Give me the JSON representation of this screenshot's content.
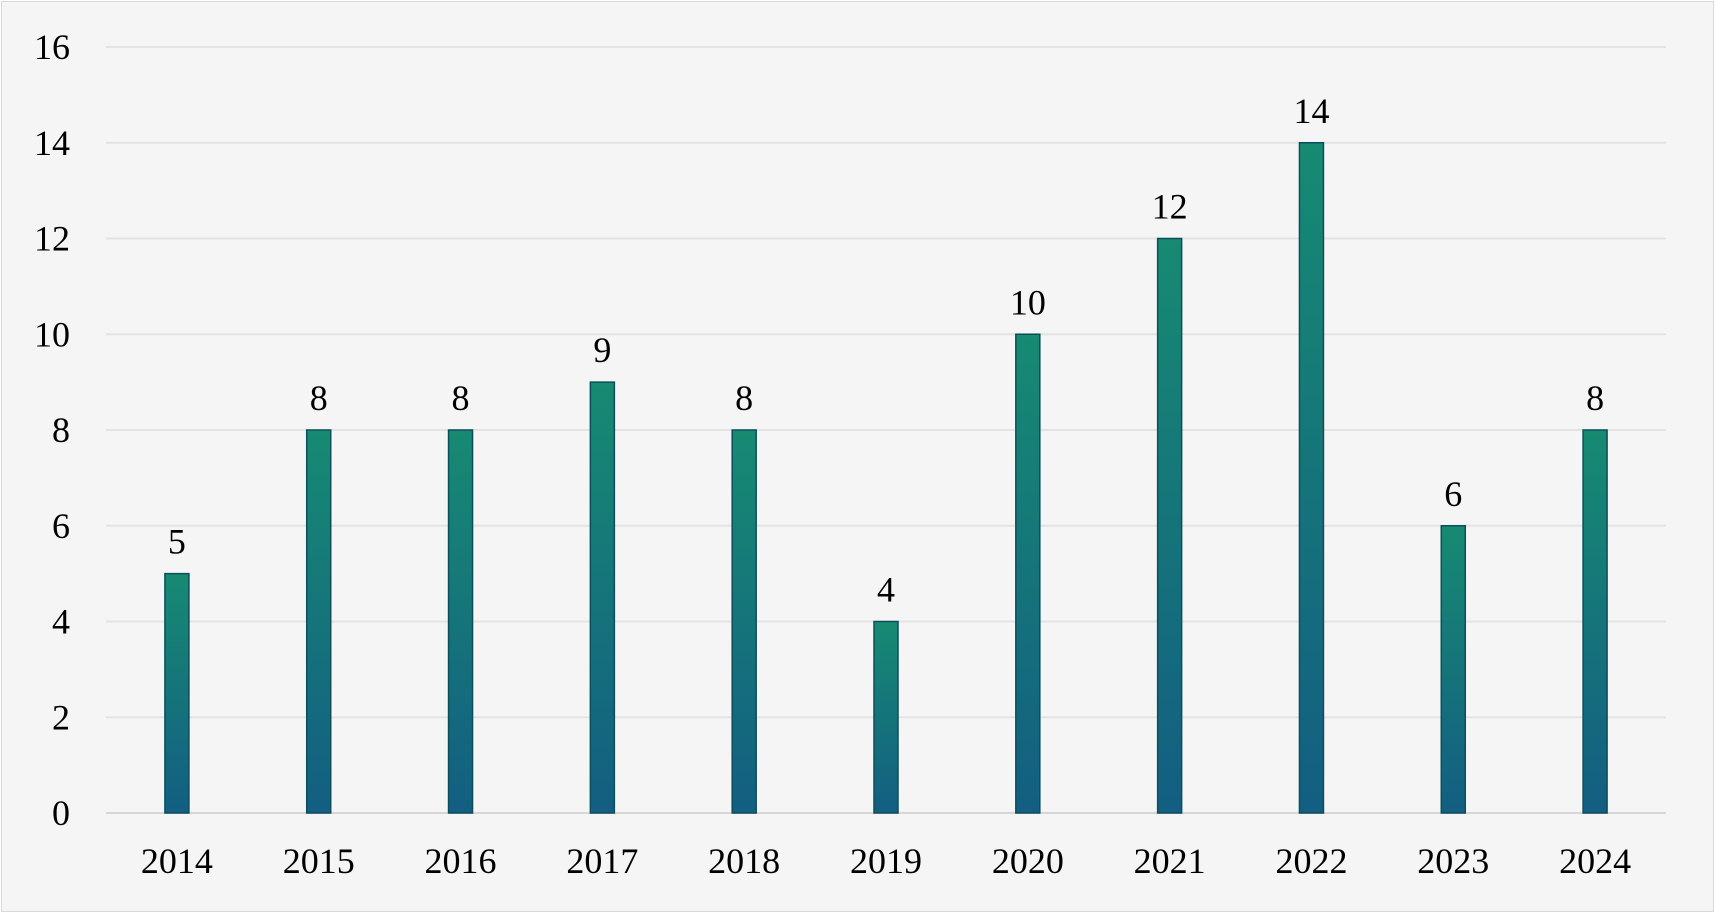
{
  "chart_data": {
    "type": "bar",
    "categories": [
      "2014",
      "2015",
      "2016",
      "2017",
      "2018",
      "2019",
      "2020",
      "2021",
      "2022",
      "2023",
      "2024"
    ],
    "values": [
      5,
      8,
      8,
      9,
      8,
      4,
      10,
      12,
      14,
      6,
      8
    ],
    "data_labels": [
      "5",
      "8",
      "8",
      "9",
      "8",
      "4",
      "10",
      "12",
      "14",
      "6",
      "8"
    ],
    "title": "",
    "xlabel": "",
    "ylabel": "",
    "ylim": [
      0,
      16
    ],
    "yticks": [
      0,
      2,
      4,
      6,
      8,
      10,
      12,
      14,
      16
    ],
    "ytick_labels": [
      "0",
      "2",
      "4",
      "6",
      "8",
      "10",
      "12",
      "14",
      "16"
    ],
    "grid": "horizontal",
    "legend": "none",
    "colors": {
      "background": "#f5f5f5",
      "bar_top": "#178a72",
      "bar_bottom": "#135e82",
      "gridline": "#e3e3e3"
    }
  }
}
